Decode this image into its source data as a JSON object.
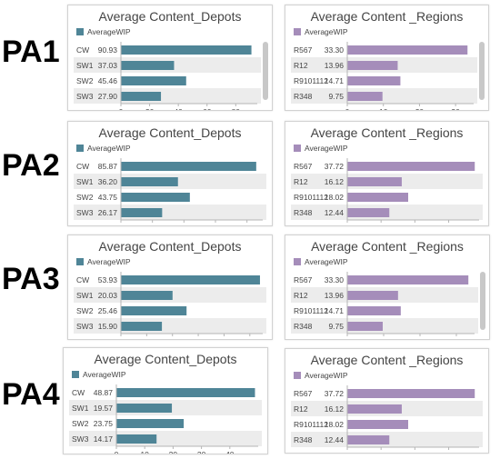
{
  "colors": {
    "depot_bar": "#4f8597",
    "region_bar": "#a58dba",
    "row_stripe": "#ececec",
    "axis": "#b5b5b5",
    "text": "#444444"
  },
  "row_labels": [
    "PA1",
    "PA2",
    "PA3",
    "PA4"
  ],
  "chart_data": [
    {
      "type": "bar",
      "orientation": "horizontal",
      "title": "Average Content_Depots",
      "legend": "AverageWIP",
      "categories": [
        "CW",
        "SW1",
        "SW2",
        "SW3"
      ],
      "values": [
        90.93,
        37.03,
        45.46,
        27.9
      ],
      "value_labels": [
        "90.93",
        "37.03",
        "45.46",
        "27.90"
      ],
      "xlim": [
        0,
        95
      ],
      "xticks": [
        0,
        20,
        40,
        60,
        80
      ]
    },
    {
      "type": "bar",
      "orientation": "horizontal",
      "title": "Average Content _Regions",
      "legend": "AverageWIP",
      "categories": [
        "R567",
        "R12",
        "R9101112",
        "R348"
      ],
      "values": [
        33.3,
        13.96,
        14.71,
        9.75
      ],
      "value_labels": [
        "33.30",
        "13.96",
        "14.71",
        "9.75"
      ],
      "xlim": [
        0,
        35
      ],
      "xticks": [
        0,
        10,
        20,
        30
      ]
    },
    {
      "type": "bar",
      "orientation": "horizontal",
      "title": "Average Content_Depots",
      "legend": "AverageWIP",
      "categories": [
        "CW",
        "SW1",
        "SW2",
        "SW3"
      ],
      "values": [
        85.87,
        36.2,
        43.75,
        26.17
      ],
      "value_labels": [
        "85.87",
        "36.20",
        "43.75",
        "26.17"
      ],
      "xlim": [
        0,
        90
      ],
      "xticks": [
        0,
        20,
        40,
        60,
        80
      ]
    },
    {
      "type": "bar",
      "orientation": "horizontal",
      "title": "Average Content _Regions",
      "legend": "AverageWIP",
      "categories": [
        "R567",
        "R12",
        "R9101112",
        "R348"
      ],
      "values": [
        37.72,
        16.12,
        18.02,
        12.44
      ],
      "value_labels": [
        "37.72",
        "16.12",
        "18.02",
        "12.44"
      ],
      "xlim": [
        0,
        39
      ],
      "xticks": [
        0,
        10,
        20,
        30
      ]
    },
    {
      "type": "bar",
      "orientation": "horizontal",
      "title": "Average Content_Depots",
      "legend": "AverageWIP",
      "categories": [
        "CW",
        "SW1",
        "SW2",
        "SW3"
      ],
      "values": [
        53.93,
        20.03,
        25.46,
        15.9
      ],
      "value_labels": [
        "53.93",
        "20.03",
        "25.46",
        "15.90"
      ],
      "xlim": [
        0,
        55
      ],
      "xticks": [
        0,
        10,
        20,
        30,
        40,
        50
      ]
    },
    {
      "type": "bar",
      "orientation": "horizontal",
      "title": "Average Content _Regions",
      "legend": "AverageWIP",
      "categories": [
        "R567",
        "R12",
        "R9101112",
        "R348"
      ],
      "values": [
        33.3,
        13.96,
        14.71,
        9.75
      ],
      "value_labels": [
        "33.30",
        "13.96",
        "14.71",
        "9.75"
      ],
      "xlim": [
        0,
        35
      ],
      "xticks": [
        0,
        10,
        20,
        30
      ]
    },
    {
      "type": "bar",
      "orientation": "horizontal",
      "title": "Average Content_Depots",
      "legend": "AverageWIP",
      "categories": [
        "CW",
        "SW1",
        "SW2",
        "SW3"
      ],
      "values": [
        48.87,
        19.57,
        23.75,
        14.17
      ],
      "value_labels": [
        "48.87",
        "19.57",
        "23.75",
        "14.17"
      ],
      "xlim": [
        0,
        50
      ],
      "xticks": [
        0,
        10,
        20,
        30,
        40
      ]
    },
    {
      "type": "bar",
      "orientation": "horizontal",
      "title": "Average Content _Regions",
      "legend": "AverageWIP",
      "categories": [
        "R567",
        "R12",
        "R9101112",
        "R348"
      ],
      "values": [
        37.72,
        16.12,
        18.02,
        12.44
      ],
      "value_labels": [
        "37.72",
        "16.12",
        "18.02",
        "12.44"
      ],
      "xlim": [
        0,
        39
      ],
      "xticks": [
        0,
        10,
        20,
        30
      ]
    }
  ]
}
